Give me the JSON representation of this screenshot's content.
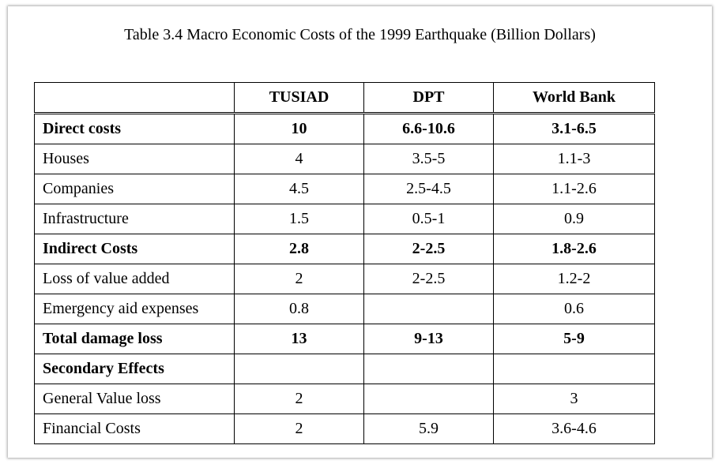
{
  "caption": "Table 3.4 Macro Economic Costs of the 1999 Earthquake (Billion Dollars)",
  "table": {
    "columns": [
      "",
      "TUSIAD",
      "DPT",
      "World Bank"
    ],
    "rows": [
      {
        "label": "Direct costs",
        "tusiad": "10",
        "dpt": "6.6-10.6",
        "world_bank": "3.1-6.5",
        "bold": true
      },
      {
        "label": "Houses",
        "tusiad": "4",
        "dpt": "3.5-5",
        "world_bank": "1.1-3",
        "bold": false
      },
      {
        "label": "Companies",
        "tusiad": "4.5",
        "dpt": "2.5-4.5",
        "world_bank": "1.1-2.6",
        "bold": false
      },
      {
        "label": "Infrastructure",
        "tusiad": "1.5",
        "dpt": "0.5-1",
        "world_bank": "0.9",
        "bold": false
      },
      {
        "label": "Indirect Costs",
        "tusiad": "2.8",
        "dpt": "2-2.5",
        "world_bank": "1.8-2.6",
        "bold": true
      },
      {
        "label": "Loss of value added",
        "tusiad": "2",
        "dpt": "2-2.5",
        "world_bank": "1.2-2",
        "bold": false
      },
      {
        "label": "Emergency aid expenses",
        "tusiad": "0.8",
        "dpt": "",
        "world_bank": "0.6",
        "bold": false
      },
      {
        "label": "Total damage loss",
        "tusiad": "13",
        "dpt": "9-13",
        "world_bank": "5-9",
        "bold": true
      },
      {
        "label": "Secondary Effects",
        "tusiad": "",
        "dpt": "",
        "world_bank": "",
        "bold": true
      },
      {
        "label": "General Value loss",
        "tusiad": "2",
        "dpt": "",
        "world_bank": "3",
        "bold": false
      },
      {
        "label": "Financial Costs",
        "tusiad": "2",
        "dpt": "5.9",
        "world_bank": "3.6-4.6",
        "bold": false
      }
    ]
  }
}
